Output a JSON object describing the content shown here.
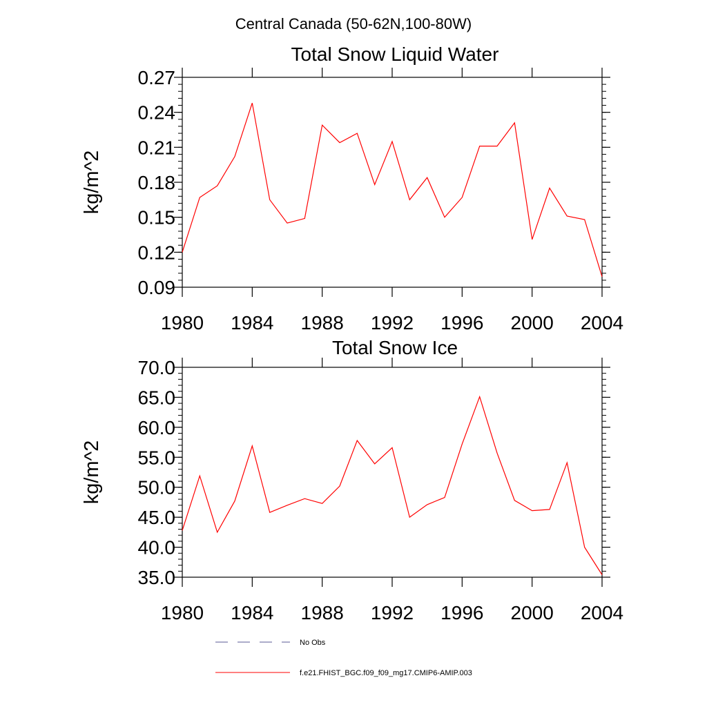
{
  "figure_title": "Central Canada (50-62N,100-80W)",
  "chart_data": [
    {
      "type": "line",
      "title": "Total Snow Liquid Water",
      "xlabel": "",
      "ylabel": "kg/m^2",
      "xlim": [
        1980,
        2004
      ],
      "ylim": [
        0.09,
        0.27
      ],
      "xticks": [
        1980,
        1984,
        1988,
        1992,
        1996,
        2000,
        2004
      ],
      "xtick_labels": [
        "1980",
        "1984",
        "1988",
        "1992",
        "1996",
        "2000",
        "2004"
      ],
      "yticks": [
        0.09,
        0.12,
        0.15,
        0.18,
        0.21,
        0.24,
        0.27
      ],
      "ytick_labels": [
        "0.09",
        "0.12",
        "0.15",
        "0.18",
        "0.21",
        "0.24",
        "0.27"
      ],
      "y_minor_step": 0.006,
      "x": [
        1980,
        1981,
        1982,
        1983,
        1984,
        1985,
        1986,
        1987,
        1988,
        1989,
        1990,
        1991,
        1992,
        1993,
        1994,
        1995,
        1996,
        1997,
        1998,
        1999,
        2000,
        2001,
        2002,
        2003,
        2004
      ],
      "series": [
        {
          "name": "f.e21.FHIST_BGC.f09_f09_mg17.CMIP6-AMIP.003",
          "color": "#ff0000",
          "values": [
            0.12,
            0.167,
            0.177,
            0.202,
            0.248,
            0.165,
            0.145,
            0.149,
            0.229,
            0.214,
            0.222,
            0.178,
            0.215,
            0.165,
            0.184,
            0.15,
            0.167,
            0.211,
            0.211,
            0.231,
            0.131,
            0.175,
            0.151,
            0.148,
            0.099
          ]
        }
      ]
    },
    {
      "type": "line",
      "title": "Total Snow Ice",
      "xlabel": "",
      "ylabel": "kg/m^2",
      "xlim": [
        1980,
        2004
      ],
      "ylim": [
        35.0,
        70.0
      ],
      "xticks": [
        1980,
        1984,
        1988,
        1992,
        1996,
        2000,
        2004
      ],
      "xtick_labels": [
        "1980",
        "1984",
        "1988",
        "1992",
        "1996",
        "2000",
        "2004"
      ],
      "yticks": [
        35,
        40,
        45,
        50,
        55,
        60,
        65,
        70
      ],
      "ytick_labels": [
        "35.0",
        "40.0",
        "45.0",
        "50.0",
        "55.0",
        "60.0",
        "65.0",
        "70.0"
      ],
      "y_minor_step": 1.0,
      "x": [
        1980,
        1981,
        1982,
        1983,
        1984,
        1985,
        1986,
        1987,
        1988,
        1989,
        1990,
        1991,
        1992,
        1993,
        1994,
        1995,
        1996,
        1997,
        1998,
        1999,
        2000,
        2001,
        2002,
        2003,
        2004
      ],
      "series": [
        {
          "name": "f.e21.FHIST_BGC.f09_f09_mg17.CMIP6-AMIP.003",
          "color": "#ff0000",
          "values": [
            42.8,
            51.9,
            42.5,
            47.7,
            56.9,
            45.8,
            47.0,
            48.1,
            47.3,
            50.2,
            57.8,
            53.9,
            56.6,
            45.0,
            47.1,
            48.3,
            57.2,
            65.1,
            55.7,
            47.8,
            46.1,
            46.3,
            54.1,
            40.0,
            35.4
          ]
        }
      ]
    }
  ],
  "legend": [
    {
      "label": "No Obs",
      "style": "dashed",
      "color": "#5a5a96"
    },
    {
      "label": "f.e21.FHIST_BGC.f09_f09_mg17.CMIP6-AMIP.003",
      "style": "solid",
      "color": "#ff0000"
    }
  ]
}
